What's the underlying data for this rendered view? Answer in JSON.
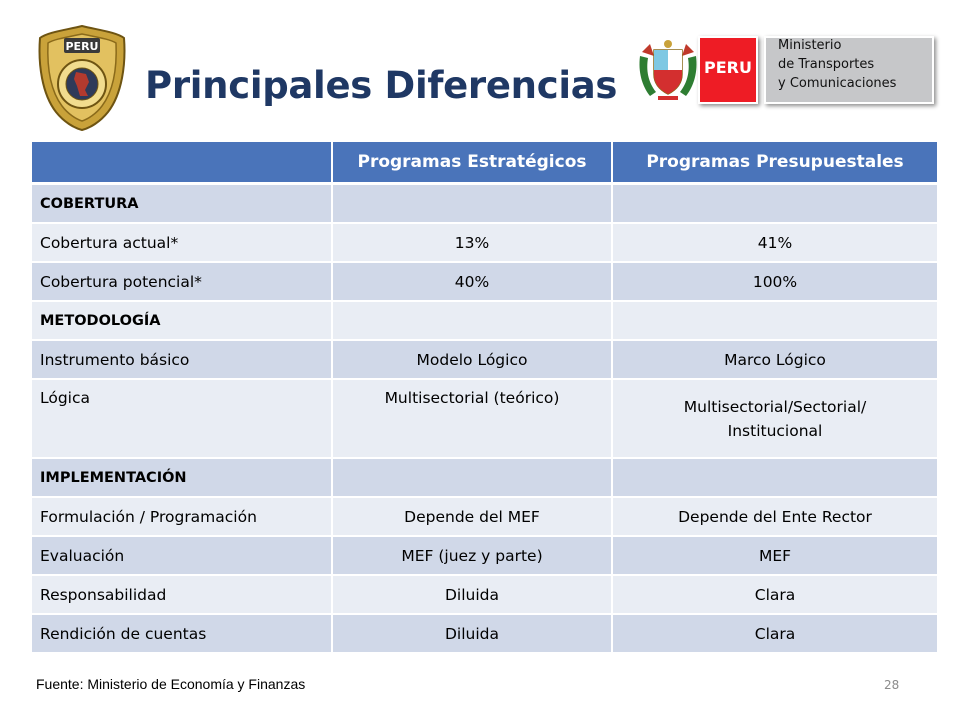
{
  "header": {
    "title": "Principales Diferencias",
    "badge_text": "PERU",
    "peru_label": "PERU",
    "ministry_lines": [
      "Ministerio",
      "de Transportes",
      "y Comunicaciones"
    ]
  },
  "table": {
    "columns": [
      "",
      "Programas Estratégicos",
      "Programas Presupuestales"
    ],
    "rows": [
      {
        "cells": [
          "COBERTURA",
          "",
          ""
        ],
        "section": true
      },
      {
        "cells": [
          "Cobertura actual*",
          "13%",
          "41%"
        ],
        "section": false
      },
      {
        "cells": [
          "Cobertura potencial*",
          "40%",
          "100%"
        ],
        "section": false
      },
      {
        "cells": [
          "METODOLOGÍA",
          "",
          ""
        ],
        "section": true
      },
      {
        "cells": [
          "Instrumento básico",
          "Modelo Lógico",
          "Marco Lógico"
        ],
        "section": false
      },
      {
        "cells": [
          "Lógica",
          "Multisectorial (teórico)",
          "Multisectorial/Sectorial/ Institucional"
        ],
        "section": false
      },
      {
        "cells": [
          "IMPLEMENTACIÓN",
          "",
          ""
        ],
        "section": true
      },
      {
        "cells": [
          "Formulación / Programación",
          "Depende del MEF",
          "Depende del Ente Rector"
        ],
        "section": false
      },
      {
        "cells": [
          "Evaluación",
          "MEF (juez y parte)",
          "MEF"
        ],
        "section": false
      },
      {
        "cells": [
          "Responsabilidad",
          "Diluida",
          "Clara"
        ],
        "section": false
      },
      {
        "cells": [
          "Rendición de cuentas",
          "Diluida",
          "Clara"
        ],
        "section": false
      }
    ]
  },
  "footer": {
    "source": "Fuente: Ministerio de Economía y Finanzas",
    "page_number": "28"
  },
  "colors": {
    "title": "#1f3864",
    "header_fill": "#4a74ba",
    "row_dark": "#d0d8e8",
    "row_light": "#e9edf4",
    "peru_red": "#ee1c25",
    "ministry_gray": "#c6c7c9"
  }
}
